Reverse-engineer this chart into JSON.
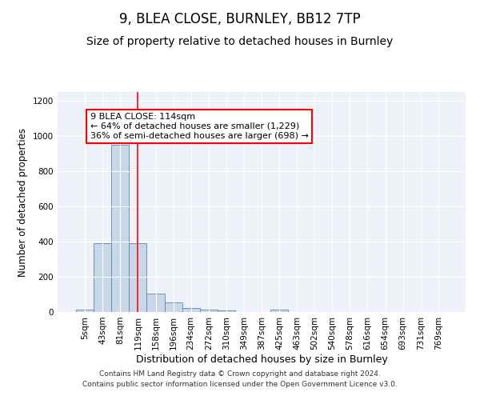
{
  "title": "9, BLEA CLOSE, BURNLEY, BB12 7TP",
  "subtitle": "Size of property relative to detached houses in Burnley",
  "xlabel": "Distribution of detached houses by size in Burnley",
  "ylabel": "Number of detached properties",
  "categories": [
    "5sqm",
    "43sqm",
    "81sqm",
    "119sqm",
    "158sqm",
    "196sqm",
    "234sqm",
    "272sqm",
    "310sqm",
    "349sqm",
    "387sqm",
    "425sqm",
    "463sqm",
    "502sqm",
    "540sqm",
    "578sqm",
    "616sqm",
    "654sqm",
    "693sqm",
    "731sqm",
    "769sqm"
  ],
  "values": [
    15,
    390,
    950,
    390,
    105,
    55,
    25,
    15,
    10,
    0,
    0,
    15,
    0,
    0,
    0,
    0,
    0,
    0,
    0,
    0,
    0
  ],
  "bar_color": "#c8d8e8",
  "bar_edge_color": "#5588aa",
  "red_line_x": 3,
  "annotation_text": "9 BLEA CLOSE: 114sqm\n← 64% of detached houses are smaller (1,229)\n36% of semi-detached houses are larger (698) →",
  "annotation_box_color": "white",
  "annotation_box_edge_color": "red",
  "vline_color": "red",
  "ylim": [
    0,
    1250
  ],
  "yticks": [
    0,
    200,
    400,
    600,
    800,
    1000,
    1200
  ],
  "background_color": "#eef2f8",
  "footer_line1": "Contains HM Land Registry data © Crown copyright and database right 2024.",
  "footer_line2": "Contains public sector information licensed under the Open Government Licence v3.0.",
  "title_fontsize": 12,
  "subtitle_fontsize": 10,
  "xlabel_fontsize": 9,
  "ylabel_fontsize": 8.5,
  "tick_fontsize": 7.5,
  "footer_fontsize": 6.5,
  "annotation_fontsize": 8
}
